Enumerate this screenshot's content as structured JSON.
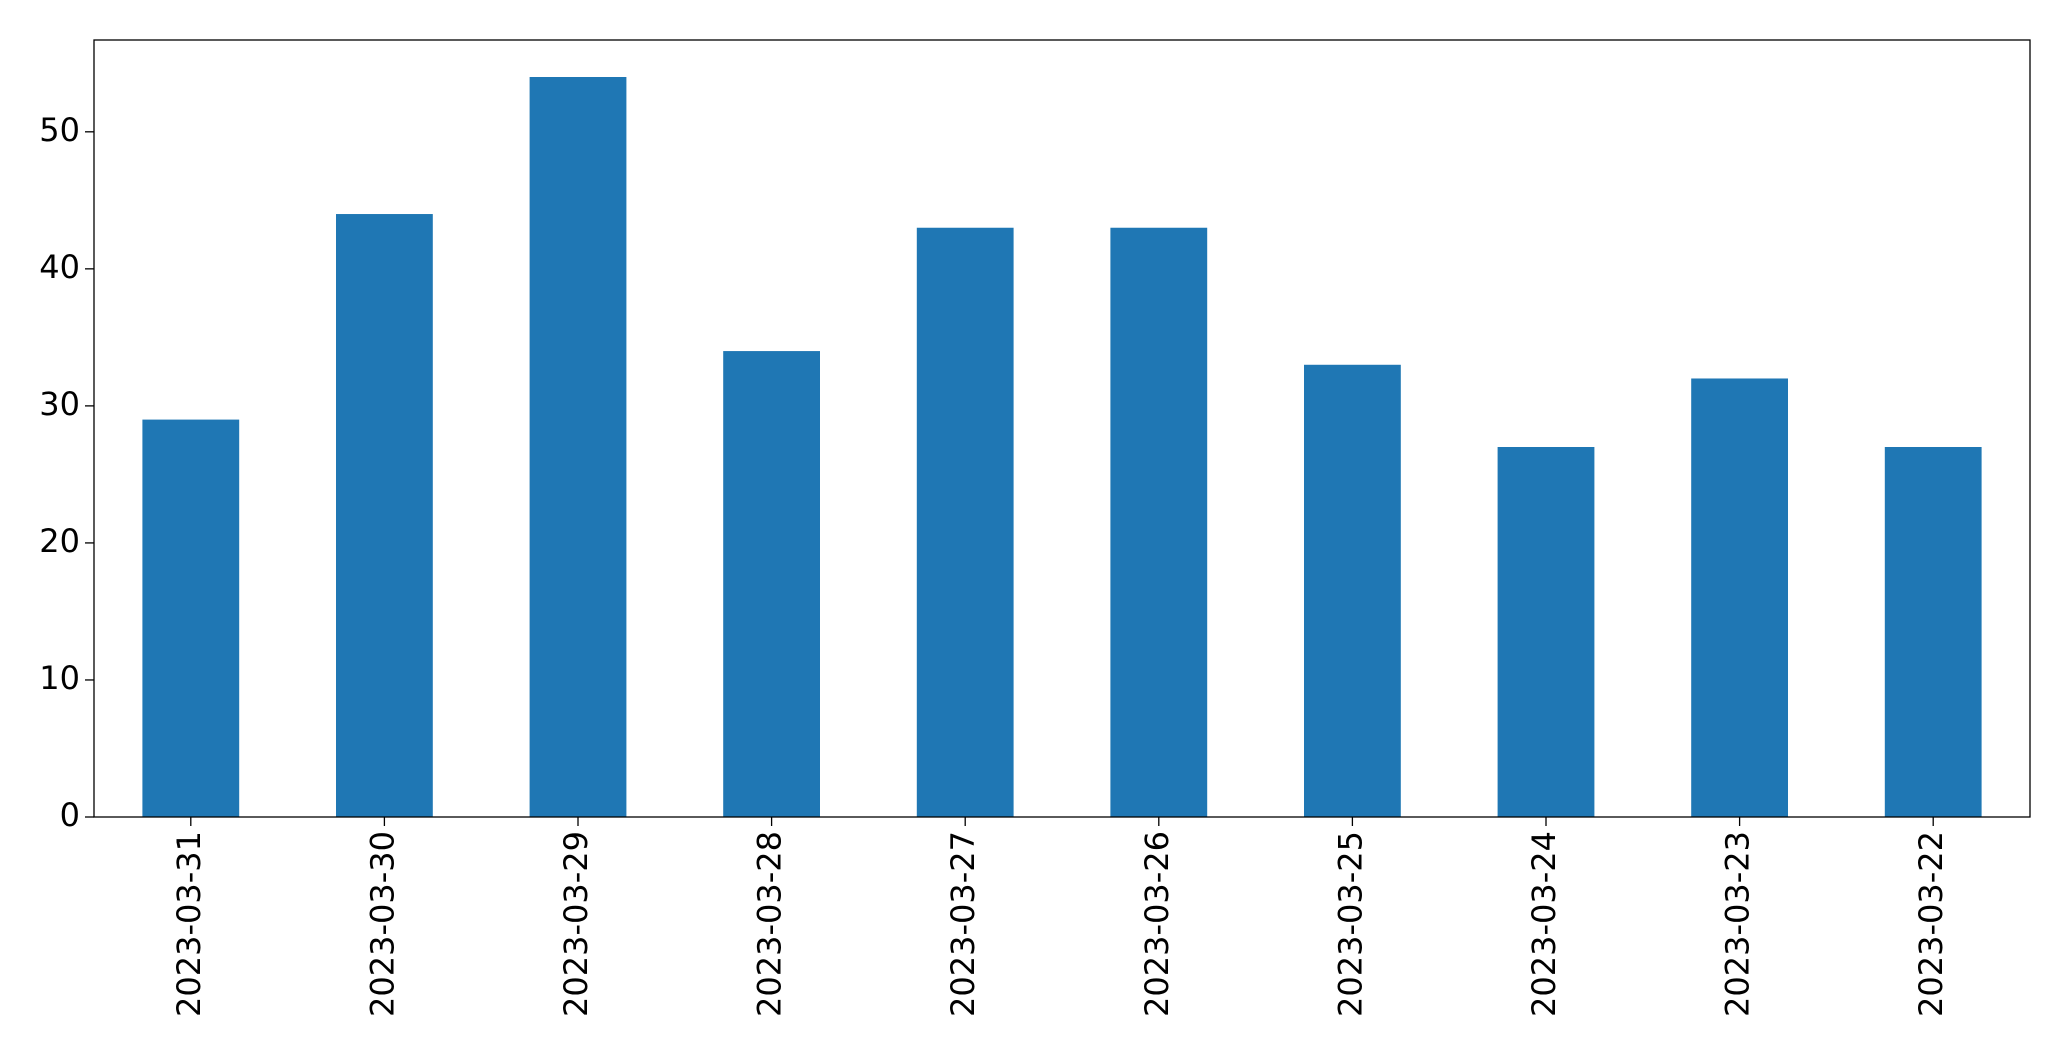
{
  "chart_data": {
    "type": "bar",
    "categories": [
      "2023-03-31",
      "2023-03-30",
      "2023-03-29",
      "2023-03-28",
      "2023-03-27",
      "2023-03-26",
      "2023-03-25",
      "2023-03-24",
      "2023-03-23",
      "2023-03-22"
    ],
    "values": [
      29,
      44,
      54,
      34,
      43,
      43,
      33,
      27,
      32,
      27
    ],
    "color": "#1f77b4",
    "ylim": [
      0,
      56.7
    ],
    "yticks": [
      0,
      10,
      20,
      30,
      40,
      50
    ],
    "grid": false
  }
}
